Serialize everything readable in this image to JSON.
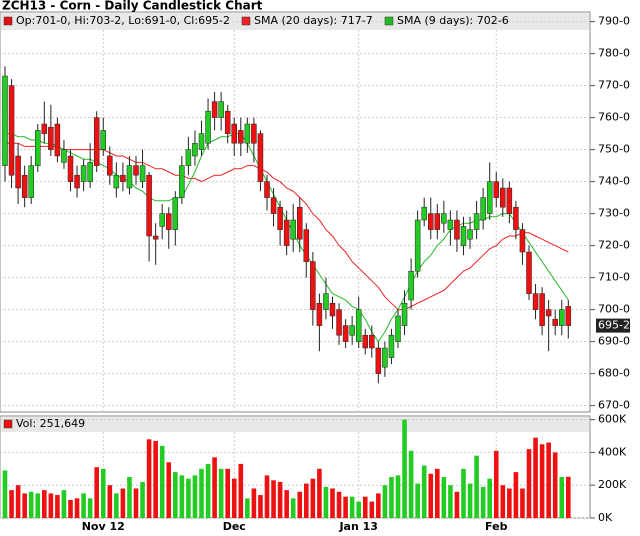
{
  "chart_data": {
    "type": "candlestick",
    "title": "ZCH13 - Corn - Daily Candlestick Chart",
    "ohlc_label": "Op:701-0, Hi:703-2, Lo:691-0, Cl:695-2",
    "ohlc_color": "#dd1111",
    "last_price_label": "695-2",
    "up_color": "#22cc22",
    "down_color": "#ee1111",
    "grid": true,
    "categories": [
      null,
      null,
      null,
      null,
      null,
      null,
      null,
      null,
      null,
      null,
      null,
      null,
      null,
      null,
      null,
      "Nov 12",
      null,
      null,
      null,
      null,
      null,
      null,
      null,
      null,
      null,
      null,
      null,
      null,
      null,
      null,
      null,
      null,
      null,
      null,
      null,
      "Dec",
      null,
      null,
      null,
      null,
      null,
      null,
      null,
      null,
      null,
      null,
      null,
      null,
      null,
      null,
      null,
      null,
      null,
      null,
      "Jan 13",
      null,
      null,
      null,
      null,
      null,
      null,
      null,
      null,
      null,
      null,
      null,
      null,
      null,
      null,
      null,
      null,
      null,
      null,
      null,
      null,
      "Feb",
      null,
      null,
      null,
      null,
      null,
      null,
      null,
      null,
      null,
      null,
      null
    ],
    "open": [
      745,
      770,
      748,
      742,
      735,
      745,
      758,
      757,
      758,
      746,
      748,
      742,
      740,
      740,
      760,
      750,
      748,
      738,
      742,
      738,
      745,
      740,
      742,
      723,
      726,
      730,
      725,
      735,
      745,
      748,
      750,
      752,
      765,
      760,
      762,
      758,
      756,
      752,
      758,
      755,
      740,
      735,
      732,
      728,
      722,
      732,
      725,
      715,
      702,
      700,
      702,
      700,
      695,
      692,
      690,
      692,
      692,
      688,
      682,
      685,
      690,
      695,
      703,
      712,
      728,
      730,
      730,
      727,
      725,
      728,
      720,
      722,
      725,
      728,
      730,
      740,
      738,
      738,
      732,
      725,
      718,
      705,
      705,
      700,
      697,
      695,
      701
    ],
    "high": [
      776,
      772,
      752,
      745,
      748,
      758,
      765,
      764,
      760,
      753,
      750,
      745,
      747,
      752,
      762,
      760,
      751,
      746,
      746,
      748,
      748,
      750,
      743,
      727,
      733,
      732,
      737,
      748,
      754,
      756,
      759,
      766,
      768,
      768,
      764,
      760,
      760,
      760,
      760,
      756,
      742,
      738,
      734,
      731,
      733,
      735,
      727,
      718,
      705,
      710,
      704,
      702,
      697,
      698,
      704,
      694,
      695,
      690,
      690,
      694,
      700,
      706,
      716,
      731,
      735,
      735,
      733,
      734,
      731,
      731,
      729,
      729,
      734,
      738,
      746,
      743,
      741,
      740,
      734,
      727,
      720,
      708,
      707,
      703,
      700,
      703,
      703
    ],
    "low": [
      740,
      738,
      733,
      732,
      733,
      743,
      752,
      748,
      746,
      744,
      737,
      735,
      737,
      738,
      743,
      748,
      739,
      735,
      737,
      736,
      739,
      738,
      715,
      714,
      722,
      719,
      720,
      733,
      742,
      745,
      748,
      750,
      756,
      756,
      752,
      748,
      748,
      749,
      746,
      737,
      731,
      726,
      720,
      717,
      718,
      718,
      710,
      695,
      687,
      697,
      694,
      689,
      688,
      689,
      688,
      686,
      685,
      677,
      679,
      683,
      688,
      692,
      700,
      710,
      726,
      722,
      722,
      724,
      720,
      718,
      717,
      719,
      722,
      725,
      728,
      732,
      729,
      727,
      722,
      714,
      703,
      697,
      692,
      687,
      692,
      692,
      691
    ],
    "close": [
      773,
      742,
      738,
      735,
      745,
      756,
      755,
      750,
      748,
      750,
      740,
      738,
      745,
      746,
      745,
      756,
      742,
      742,
      740,
      745,
      742,
      745,
      723,
      722,
      730,
      725,
      735,
      745,
      750,
      752,
      755,
      762,
      760,
      765,
      755,
      752,
      752,
      758,
      752,
      740,
      735,
      730,
      725,
      720,
      728,
      722,
      715,
      700,
      695,
      705,
      698,
      692,
      690,
      695,
      700,
      688,
      688,
      680,
      688,
      692,
      698,
      702,
      712,
      728,
      732,
      725,
      725,
      730,
      728,
      722,
      726,
      725,
      730,
      735,
      740,
      735,
      732,
      730,
      725,
      718,
      705,
      700,
      695,
      698,
      695,
      700,
      695
    ],
    "ylim": [
      668,
      793
    ],
    "yticks": [
      {
        "value": 670,
        "label": "670-0"
      },
      {
        "value": 680,
        "label": "680-0"
      },
      {
        "value": 690,
        "label": "690-0"
      },
      {
        "value": 700,
        "label": "700-0"
      },
      {
        "value": 710,
        "label": "710-0"
      },
      {
        "value": 720,
        "label": "720-0"
      },
      {
        "value": 730,
        "label": "730-0"
      },
      {
        "value": 740,
        "label": "740-0"
      },
      {
        "value": 750,
        "label": "750-0"
      },
      {
        "value": 760,
        "label": "760-0"
      },
      {
        "value": 770,
        "label": "770-0"
      },
      {
        "value": 780,
        "label": "780-0"
      },
      {
        "value": 790,
        "label": "790-0"
      }
    ],
    "series": [
      {
        "name": "SMA (20 days): 717-7",
        "color": "#ee2222",
        "values": [
          752,
          752,
          752,
          751,
          751,
          751,
          751,
          751,
          751,
          750,
          750,
          750,
          750,
          750,
          750,
          750,
          749,
          748,
          748,
          747,
          746,
          746,
          745,
          744,
          744,
          743,
          742,
          742,
          741,
          741,
          740,
          741,
          742,
          742,
          743,
          744,
          744,
          745,
          745,
          744,
          743,
          741,
          740,
          738,
          737,
          735,
          733,
          730,
          728,
          725,
          723,
          720,
          718,
          715,
          713,
          711,
          709,
          707,
          704,
          702,
          700,
          700,
          701,
          702,
          703,
          704,
          705,
          706,
          708,
          710,
          712,
          713,
          715,
          717,
          719,
          720,
          722,
          723,
          723,
          724,
          724,
          723,
          722,
          721,
          720,
          719,
          718
        ]
      },
      {
        "name": "SMA (9 days): 702-6",
        "color": "#22bb22",
        "values": [
          755,
          755,
          754,
          754,
          753,
          753,
          752,
          752,
          751,
          750,
          749,
          748,
          747,
          747,
          746,
          745,
          744,
          742,
          741,
          740,
          738,
          737,
          735,
          734,
          734,
          734,
          735,
          735,
          739,
          743,
          748,
          752,
          753,
          754,
          754,
          755,
          755,
          752,
          748,
          744,
          740,
          736,
          732,
          728,
          724,
          720,
          717,
          714,
          711,
          708,
          705,
          704,
          703,
          701,
          700,
          697,
          693,
          690,
          693,
          697,
          700,
          704,
          708,
          712,
          715,
          717,
          720,
          722,
          725,
          726,
          727,
          727,
          728,
          728,
          729,
          729,
          730,
          730,
          727,
          724,
          721,
          718,
          715,
          712,
          709,
          706,
          703
        ]
      }
    ],
    "volume": {
      "label": "Vol: 251,649",
      "ylim": [
        0,
        610000
      ],
      "yticks": [
        {
          "value": 0,
          "label": "0K"
        },
        {
          "value": 200000,
          "label": "200K"
        },
        {
          "value": 400000,
          "label": "400K"
        },
        {
          "value": 600000,
          "label": "600K"
        }
      ],
      "values": [
        290000,
        170000,
        200000,
        150000,
        160000,
        150000,
        170000,
        150000,
        140000,
        170000,
        110000,
        120000,
        150000,
        120000,
        310000,
        300000,
        200000,
        150000,
        180000,
        250000,
        180000,
        220000,
        480000,
        470000,
        440000,
        340000,
        280000,
        260000,
        240000,
        260000,
        300000,
        330000,
        370000,
        300000,
        300000,
        240000,
        330000,
        120000,
        180000,
        140000,
        260000,
        230000,
        220000,
        170000,
        120000,
        160000,
        210000,
        240000,
        300000,
        190000,
        180000,
        160000,
        130000,
        130000,
        100000,
        130000,
        100000,
        150000,
        200000,
        250000,
        260000,
        600000,
        410000,
        210000,
        320000,
        270000,
        300000,
        250000,
        200000,
        160000,
        300000,
        210000,
        380000,
        190000,
        240000,
        410000,
        200000,
        180000,
        280000,
        180000,
        420000,
        490000,
        450000,
        460000,
        400000,
        250000,
        251649
      ]
    }
  }
}
